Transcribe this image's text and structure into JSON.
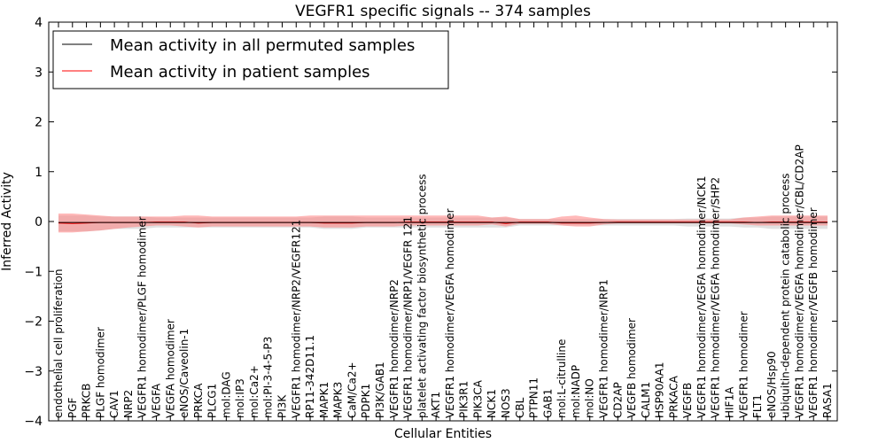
{
  "chart_data": {
    "type": "line",
    "title": "VEGFR1 specific signals -- 374 samples",
    "xlabel": "Cellular Entities",
    "ylabel": "Inferred Activity",
    "ylim": [
      -4,
      4
    ],
    "yticks": [
      "−4",
      "−3",
      "−2",
      "−1",
      "0",
      "1",
      "2",
      "3",
      "4"
    ],
    "yticks_values": [
      -4,
      -3,
      -2,
      -1,
      0,
      1,
      2,
      3,
      4
    ],
    "legend_position": "top-left",
    "categories": [
      "endothelial cell proliferation",
      "PGF",
      "PRKCB",
      "PLGF homodimer",
      "CAV1",
      "NRP2",
      "VEGFR1 homodimer/PLGF homodimer",
      "VEGFA",
      "VEGFA homodimer",
      "eNOS/Caveolin-1",
      "PRKCA",
      "PLCG1",
      "mol:DAG",
      "mol:IP3",
      "mol:Ca2+",
      "mol:PI-3-4-5-P3",
      "PI3K",
      "VEGFR1 homodimer/NRP2/VEGFR121",
      "RP11-342D11.1",
      "MAPK1",
      "MAPK3",
      "CaM/Ca2+",
      "PDPK1",
      "PI3K/GAB1",
      "VEGFR1 homodimer/NRP2",
      "VEGFR1 homodimer/NRP1/VEGFR 121",
      "platelet activating factor biosynthetic process",
      "AKT1",
      "VEGFR1 homodimer/VEGFA homodimer",
      "PIK3R1",
      "PIK3CA",
      "NCK1",
      "NOS3",
      "CBL",
      "PTPN11",
      "GAB1",
      "mol:L-citrulline",
      "mol:NADP",
      "mol:NO",
      "VEGFR1 homodimer/NRP1",
      "CD2AP",
      "VEGFB homodimer",
      "CALM1",
      "HSP90AA1",
      "PRKACA",
      "VEGFB",
      "VEGFR1 homodimer/VEGFA homodimer/NCK1",
      "VEGFR1 homodimer/VEGFA homodimer/SHP2",
      "HIF1A",
      "VEGFR1 homodimer",
      "FLT1",
      "eNOS/Hsp90",
      "ubiquitin-dependent protein catabolic process",
      "VEGFR1 homodimer/VEGFA homodimer/CBL/CD2AP",
      "VEGFR1 homodimer/VEGFB homodimer",
      "RASA1"
    ],
    "series": [
      {
        "name": "Mean activity in all permuted samples",
        "color": "#000000",
        "values": [
          -0.02,
          -0.02,
          -0.02,
          -0.02,
          -0.02,
          -0.02,
          -0.02,
          -0.02,
          -0.02,
          -0.02,
          -0.02,
          -0.02,
          -0.02,
          -0.02,
          -0.02,
          -0.02,
          -0.02,
          -0.02,
          -0.02,
          -0.02,
          -0.02,
          -0.02,
          -0.02,
          -0.02,
          -0.02,
          -0.02,
          -0.02,
          -0.02,
          -0.02,
          -0.02,
          -0.02,
          -0.02,
          -0.02,
          -0.02,
          -0.02,
          -0.02,
          -0.02,
          -0.02,
          -0.02,
          -0.02,
          -0.02,
          -0.02,
          -0.02,
          -0.02,
          -0.02,
          -0.02,
          -0.02,
          -0.02,
          -0.02,
          -0.02,
          -0.02,
          -0.02,
          -0.02,
          -0.02,
          -0.02,
          -0.02
        ],
        "band_lower": [
          -0.2,
          -0.2,
          -0.2,
          -0.18,
          -0.15,
          -0.15,
          -0.15,
          -0.12,
          -0.12,
          -0.12,
          -0.12,
          -0.12,
          -0.12,
          -0.12,
          -0.12,
          -0.12,
          -0.12,
          -0.12,
          -0.12,
          -0.15,
          -0.15,
          -0.15,
          -0.12,
          -0.12,
          -0.12,
          -0.12,
          -0.12,
          -0.12,
          -0.12,
          -0.12,
          -0.12,
          -0.12,
          -0.12,
          -0.08,
          -0.08,
          -0.08,
          -0.08,
          -0.08,
          -0.08,
          -0.08,
          -0.08,
          -0.08,
          -0.08,
          -0.08,
          -0.08,
          -0.1,
          -0.1,
          -0.1,
          -0.1,
          -0.12,
          -0.12,
          -0.15,
          -0.15,
          -0.15,
          -0.15,
          -0.15
        ],
        "band_upper": [
          0.12,
          0.12,
          0.12,
          0.1,
          0.1,
          0.1,
          0.1,
          0.08,
          0.08,
          0.08,
          0.08,
          0.08,
          0.08,
          0.08,
          0.08,
          0.08,
          0.08,
          0.08,
          0.08,
          0.1,
          0.1,
          0.1,
          0.08,
          0.08,
          0.08,
          0.08,
          0.08,
          0.08,
          0.08,
          0.08,
          0.08,
          0.08,
          0.08,
          0.05,
          0.05,
          0.05,
          0.05,
          0.05,
          0.05,
          0.05,
          0.05,
          0.05,
          0.05,
          0.05,
          0.05,
          0.06,
          0.06,
          0.06,
          0.06,
          0.08,
          0.08,
          0.1,
          0.1,
          0.1,
          0.1,
          0.1
        ]
      },
      {
        "name": "Mean activity in patient samples",
        "color": "#ff0000",
        "values": [
          -0.03,
          -0.04,
          -0.03,
          -0.02,
          -0.02,
          -0.02,
          -0.02,
          -0.01,
          -0.01,
          -0.01,
          -0.03,
          -0.02,
          -0.02,
          -0.02,
          -0.02,
          -0.02,
          -0.02,
          -0.02,
          -0.02,
          -0.03,
          -0.03,
          -0.03,
          -0.02,
          -0.02,
          -0.02,
          -0.01,
          -0.01,
          -0.01,
          -0.01,
          -0.01,
          -0.01,
          -0.01,
          -0.04,
          -0.01,
          -0.01,
          -0.01,
          -0.03,
          -0.03,
          -0.03,
          -0.02,
          -0.01,
          -0.01,
          -0.01,
          -0.01,
          -0.01,
          -0.01,
          -0.01,
          -0.01,
          -0.01,
          -0.01,
          -0.02,
          -0.01,
          -0.01,
          -0.01,
          -0.01,
          -0.01
        ],
        "band_lower": [
          -0.22,
          -0.22,
          -0.2,
          -0.18,
          -0.15,
          -0.12,
          -0.1,
          -0.08,
          -0.08,
          -0.1,
          -0.12,
          -0.1,
          -0.1,
          -0.1,
          -0.1,
          -0.1,
          -0.1,
          -0.1,
          -0.1,
          -0.12,
          -0.12,
          -0.12,
          -0.1,
          -0.1,
          -0.1,
          -0.08,
          -0.08,
          -0.08,
          -0.08,
          -0.08,
          -0.08,
          -0.06,
          -0.1,
          -0.05,
          -0.05,
          -0.05,
          -0.08,
          -0.1,
          -0.1,
          -0.06,
          -0.04,
          -0.04,
          -0.04,
          -0.04,
          -0.04,
          -0.04,
          -0.04,
          -0.04,
          -0.04,
          -0.06,
          -0.08,
          -0.08,
          -0.08,
          -0.08,
          -0.08,
          -0.08
        ],
        "band_upper": [
          0.16,
          0.16,
          0.14,
          0.12,
          0.1,
          0.1,
          0.1,
          0.1,
          0.1,
          0.12,
          0.12,
          0.1,
          0.1,
          0.1,
          0.1,
          0.1,
          0.1,
          0.1,
          0.12,
          0.12,
          0.12,
          0.12,
          0.12,
          0.12,
          0.12,
          0.12,
          0.12,
          0.12,
          0.12,
          0.12,
          0.12,
          0.08,
          0.1,
          0.05,
          0.05,
          0.05,
          0.1,
          0.12,
          0.08,
          0.05,
          0.04,
          0.04,
          0.04,
          0.04,
          0.04,
          0.04,
          0.04,
          0.04,
          0.04,
          0.08,
          0.1,
          0.12,
          0.12,
          0.12,
          0.12,
          0.12
        ]
      }
    ]
  }
}
